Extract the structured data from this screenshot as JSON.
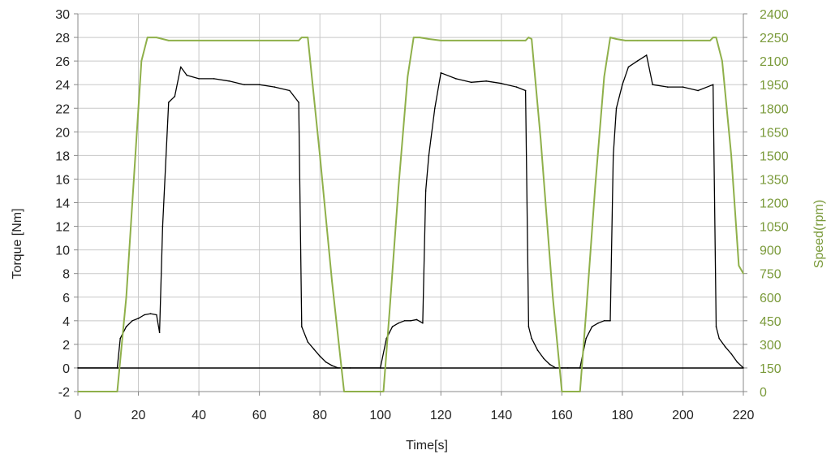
{
  "chart_data": {
    "type": "line",
    "title": "",
    "xlabel": "Time[s]",
    "ylabel": "Torque [Nm]",
    "y2label": "Speed(rpm)",
    "xlim": [
      0,
      220
    ],
    "ylim": [
      -2,
      30
    ],
    "y2lim": [
      0,
      2400
    ],
    "x_ticks": [
      "0",
      "20",
      "40",
      "60",
      "80",
      "100",
      "120",
      "140",
      "160",
      "180",
      "200",
      "220"
    ],
    "y_ticks": [
      "-2",
      "0",
      "2",
      "4",
      "6",
      "8",
      "10",
      "12",
      "14",
      "16",
      "18",
      "20",
      "22",
      "24",
      "26",
      "28",
      "30"
    ],
    "y2_ticks": [
      "0",
      "150",
      "300",
      "450",
      "600",
      "750",
      "900",
      "1050",
      "1200",
      "1350",
      "1500",
      "1650",
      "1800",
      "1950",
      "2100",
      "2250",
      "2400"
    ],
    "grid": true,
    "legend": "none",
    "colors": {
      "torque": "#000000",
      "speed": "#8fb04a",
      "right_axis_text": "#7a9a3a",
      "grid": "#c8c8c8"
    },
    "series": [
      {
        "axis": "left",
        "x": [
          0,
          13,
          14,
          16,
          18,
          20,
          22,
          24,
          26,
          27,
          28,
          30,
          32,
          34,
          36,
          40,
          45,
          50,
          55,
          60,
          65,
          70,
          73,
          74,
          76,
          78,
          80,
          82,
          84,
          86,
          88,
          90,
          100,
          102,
          104,
          106,
          108,
          110,
          112,
          114,
          115,
          116,
          118,
          120,
          125,
          130,
          135,
          140,
          145,
          148,
          149,
          150,
          152,
          154,
          156,
          158,
          160,
          162,
          166,
          168,
          170,
          172,
          174,
          176,
          177,
          178,
          180,
          182,
          185,
          188,
          190,
          195,
          200,
          205,
          210,
          211,
          212,
          214,
          216,
          218,
          220
        ],
        "values": [
          0,
          0,
          2.5,
          3.5,
          4,
          4.2,
          4.5,
          4.6,
          4.5,
          3,
          12,
          22.5,
          23,
          25.5,
          24.8,
          24.5,
          24.5,
          24.3,
          24,
          24,
          23.8,
          23.5,
          22.5,
          3.5,
          2.2,
          1.6,
          1,
          0.5,
          0.2,
          0,
          0,
          0,
          0,
          2.5,
          3.5,
          3.8,
          4,
          4,
          4.1,
          3.8,
          15,
          18,
          22,
          25,
          24.5,
          24.2,
          24.3,
          24.1,
          23.8,
          23.5,
          3.5,
          2.5,
          1.5,
          0.8,
          0.3,
          0,
          0,
          0,
          0,
          2.5,
          3.5,
          3.8,
          4,
          4,
          18,
          22,
          24,
          25.5,
          26,
          26.5,
          24,
          23.8,
          23.8,
          23.5,
          24,
          3.5,
          2.5,
          1.8,
          1.2,
          0.5,
          0
        ]
      },
      {
        "axis": "right",
        "x": [
          0,
          13,
          16,
          19,
          21,
          23,
          26,
          30,
          40,
          60,
          73,
          74,
          76,
          80,
          84,
          88,
          101,
          103,
          106,
          109,
          111,
          113,
          116,
          120,
          140,
          148,
          149,
          150,
          153,
          157,
          160,
          166,
          168,
          171,
          174,
          176,
          178,
          181,
          185,
          200,
          209,
          210,
          211,
          213,
          216,
          218.5,
          220
        ],
        "values": [
          0,
          0,
          600,
          1500,
          2100,
          2250,
          2250,
          2230,
          2230,
          2230,
          2230,
          2250,
          2250,
          1500,
          700,
          0,
          0,
          500,
          1300,
          2000,
          2250,
          2250,
          2240,
          2230,
          2230,
          2230,
          2250,
          2240,
          1600,
          600,
          0,
          0,
          500,
          1300,
          2000,
          2250,
          2240,
          2230,
          2230,
          2230,
          2230,
          2250,
          2250,
          2100,
          1500,
          800,
          750
        ]
      }
    ]
  }
}
